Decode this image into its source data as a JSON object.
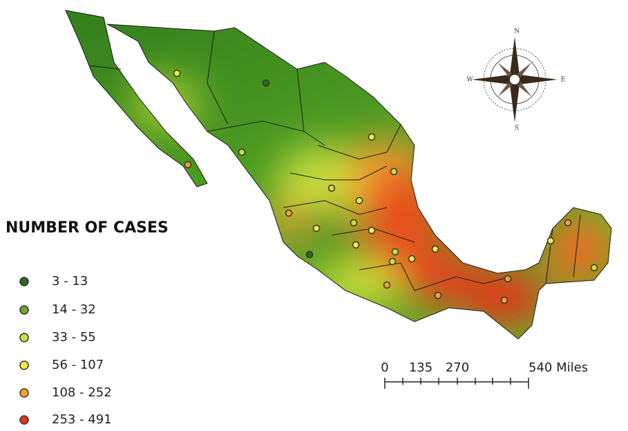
{
  "legend": {
    "title": "NUMBER OF CASES",
    "items": [
      {
        "label": "3 - 13",
        "color": "#2d6a1f"
      },
      {
        "label": "14 - 32",
        "color": "#6ea62c"
      },
      {
        "label": "33 - 55",
        "color": "#c9e03c"
      },
      {
        "label": "56 - 107",
        "color": "#f2ee3e"
      },
      {
        "label": "108 - 252",
        "color": "#f5a030"
      },
      {
        "label": "253 - 491",
        "color": "#e8321e"
      }
    ]
  },
  "scale_bar": {
    "labels": [
      "0",
      "135",
      "270",
      "540 Miles"
    ]
  },
  "compass": {
    "n": "N",
    "e": "E",
    "s": "S",
    "w": "W"
  }
}
